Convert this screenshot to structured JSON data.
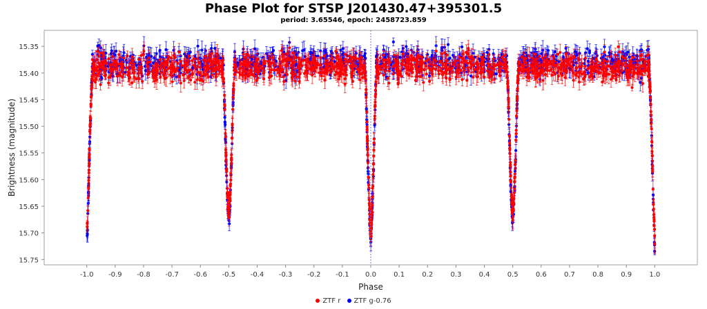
{
  "chart_data": {
    "type": "scatter",
    "title": "Phase Plot for STSP J201430.47+395301.5",
    "subtitle": "period: 3.65546, epoch: 2458723.859",
    "xlabel": "Phase",
    "ylabel": "Brightness (magnitude)",
    "xlim": [
      -1.15,
      1.15
    ],
    "ylim": [
      15.76,
      15.32
    ],
    "y_inverted": true,
    "xticks": [
      "-1.0",
      "-0.9",
      "-0.8",
      "-0.7",
      "-0.6",
      "-0.5",
      "-0.4",
      "-0.3",
      "-0.2",
      "-0.1",
      "0.0",
      "0.1",
      "0.2",
      "0.3",
      "0.4",
      "0.5",
      "0.6",
      "0.7",
      "0.8",
      "0.9",
      "1.0"
    ],
    "yticks": [
      "15.35",
      "15.40",
      "15.45",
      "15.50",
      "15.55",
      "15.60",
      "15.65",
      "15.70",
      "15.75"
    ],
    "grid": false,
    "legend_position": "bottom",
    "reference_line_x": 0.0,
    "out_of_eclipse_magnitude": 15.38,
    "primary_eclipse": {
      "phase": 0.0,
      "depth_magnitude": 15.71
    },
    "secondary_eclipse": {
      "phase": 0.5,
      "depth_magnitude": 15.67
    },
    "series": [
      {
        "name": "ZTF r",
        "color": "#ff0000",
        "profile": [
          [
            -1.0,
            15.71
          ],
          [
            -0.995,
            15.64
          ],
          [
            -0.99,
            15.53
          ],
          [
            -0.985,
            15.45
          ],
          [
            -0.98,
            15.39
          ],
          [
            -0.52,
            15.39
          ],
          [
            -0.515,
            15.45
          ],
          [
            -0.51,
            15.55
          ],
          [
            -0.505,
            15.63
          ],
          [
            -0.5,
            15.67
          ],
          [
            -0.495,
            15.63
          ],
          [
            -0.49,
            15.55
          ],
          [
            -0.485,
            15.45
          ],
          [
            -0.48,
            15.39
          ],
          [
            -0.02,
            15.39
          ],
          [
            -0.015,
            15.46
          ],
          [
            -0.01,
            15.56
          ],
          [
            -0.005,
            15.65
          ],
          [
            0.0,
            15.71
          ],
          [
            0.005,
            15.65
          ],
          [
            0.01,
            15.56
          ],
          [
            0.015,
            15.46
          ],
          [
            0.02,
            15.39
          ],
          [
            0.48,
            15.39
          ],
          [
            0.485,
            15.45
          ],
          [
            0.49,
            15.55
          ],
          [
            0.495,
            15.63
          ],
          [
            0.5,
            15.67
          ],
          [
            0.505,
            15.63
          ],
          [
            0.51,
            15.55
          ],
          [
            0.515,
            15.45
          ],
          [
            0.52,
            15.39
          ],
          [
            0.98,
            15.39
          ],
          [
            0.985,
            15.45
          ],
          [
            0.99,
            15.53
          ],
          [
            0.995,
            15.64
          ],
          [
            1.0,
            15.71
          ]
        ]
      },
      {
        "name": "ZTF g-0.76",
        "color": "#0000ff",
        "profile": [
          [
            -1.0,
            15.73
          ],
          [
            -0.995,
            15.65
          ],
          [
            -0.99,
            15.54
          ],
          [
            -0.985,
            15.45
          ],
          [
            -0.98,
            15.38
          ],
          [
            -0.52,
            15.38
          ],
          [
            -0.515,
            15.46
          ],
          [
            -0.51,
            15.56
          ],
          [
            -0.505,
            15.64
          ],
          [
            -0.5,
            15.68
          ],
          [
            -0.495,
            15.64
          ],
          [
            -0.49,
            15.56
          ],
          [
            -0.485,
            15.46
          ],
          [
            -0.48,
            15.38
          ],
          [
            -0.02,
            15.38
          ],
          [
            -0.015,
            15.47
          ],
          [
            -0.01,
            15.57
          ],
          [
            -0.005,
            15.66
          ],
          [
            0.0,
            15.72
          ],
          [
            0.005,
            15.66
          ],
          [
            0.01,
            15.57
          ],
          [
            0.015,
            15.47
          ],
          [
            0.02,
            15.38
          ],
          [
            0.48,
            15.38
          ],
          [
            0.485,
            15.46
          ],
          [
            0.49,
            15.56
          ],
          [
            0.495,
            15.64
          ],
          [
            0.5,
            15.68
          ],
          [
            0.505,
            15.64
          ],
          [
            0.51,
            15.56
          ],
          [
            0.515,
            15.46
          ],
          [
            0.52,
            15.38
          ],
          [
            0.98,
            15.38
          ],
          [
            0.985,
            15.45
          ],
          [
            0.99,
            15.54
          ],
          [
            0.995,
            15.65
          ],
          [
            1.0,
            15.73
          ]
        ]
      }
    ]
  }
}
